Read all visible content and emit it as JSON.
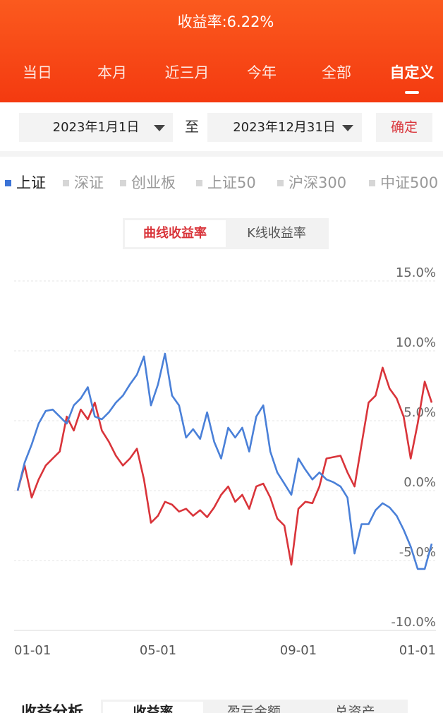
{
  "header": {
    "title": "收益率:6.22%"
  },
  "period_tabs": [
    "当日",
    "本月",
    "近三月",
    "今年",
    "全部",
    "自定义"
  ],
  "date_range": {
    "start": "2023年1月1日",
    "separator": "至",
    "end": "2023年12月31日",
    "confirm": "确定"
  },
  "index_legend": [
    "上证",
    "深证",
    "创业板",
    "上证50",
    "沪深300",
    "中证500"
  ],
  "chart_tabs": [
    "曲线收益率",
    "K线收益率"
  ],
  "chart_data": {
    "type": "line",
    "categories": [
      "01-01",
      null,
      null,
      null,
      null,
      null,
      null,
      null,
      null,
      null,
      null,
      null,
      null,
      null,
      null,
      null,
      null,
      null,
      null,
      null,
      "05-01",
      null,
      null,
      null,
      null,
      null,
      null,
      null,
      null,
      null,
      null,
      null,
      null,
      null,
      null,
      null,
      null,
      null,
      null,
      null,
      "09-01",
      null,
      null,
      null,
      null,
      null,
      null,
      null,
      null,
      null,
      null,
      null,
      null,
      null,
      null,
      null,
      null,
      null,
      null,
      "01-01"
    ],
    "series": [
      {
        "color": "#d9343a",
        "values": [
          0,
          1.8,
          -0.5,
          0.8,
          1.8,
          2.3,
          2.8,
          5.3,
          4.3,
          5.8,
          5.1,
          6.3,
          4.3,
          3.5,
          2.5,
          1.8,
          2.3,
          3.0,
          0.8,
          -2.3,
          -1.8,
          -0.8,
          -1.0,
          -1.5,
          -1.3,
          -1.8,
          -1.4,
          -1.9,
          -1.2,
          -0.3,
          0.3,
          -0.8,
          -0.3,
          -1.3,
          0.3,
          0.5,
          -0.5,
          -2.0,
          -2.5,
          -5.3,
          -1.3,
          -0.8,
          -0.9,
          0.3,
          2.3,
          2.4,
          2.5,
          1.3,
          0.3,
          3.3,
          6.3,
          6.8,
          8.8,
          7.3,
          6.6,
          5.3,
          2.3,
          4.8,
          7.8,
          6.3
        ]
      },
      {
        "color": "#4a80d8",
        "values": [
          0,
          2.0,
          3.3,
          4.8,
          5.7,
          5.8,
          5.3,
          4.8,
          6.1,
          6.6,
          7.4,
          5.3,
          5.1,
          5.6,
          6.3,
          6.8,
          7.6,
          8.3,
          9.6,
          6.1,
          7.6,
          9.8,
          6.8,
          6.1,
          3.8,
          4.4,
          3.7,
          5.6,
          3.5,
          2.3,
          4.5,
          3.8,
          4.5,
          2.8,
          5.3,
          6.1,
          2.8,
          1.3,
          0.5,
          -0.3,
          2.3,
          1.5,
          0.8,
          1.3,
          0.8,
          0.6,
          0.3,
          -0.5,
          -4.5,
          -2.4,
          -2.4,
          -1.4,
          -0.9,
          -1.2,
          -1.8,
          -2.8,
          -4.0,
          -5.6,
          -5.6,
          -3.8
        ]
      }
    ],
    "ylim": [
      -10,
      15
    ],
    "yticks": [
      {
        "value": 15,
        "label": "15.0%"
      },
      {
        "value": 10,
        "label": "10.0%"
      },
      {
        "value": 5,
        "label": "5.0%"
      },
      {
        "value": 0,
        "label": "0.0%"
      },
      {
        "value": -5,
        "label": "-5.0%"
      },
      {
        "value": -10,
        "label": "-10.0%"
      }
    ],
    "grid": true
  },
  "bottom": {
    "title": "收益分析",
    "tabs": [
      "收益率",
      "盈亏金额",
      "总资产"
    ]
  }
}
